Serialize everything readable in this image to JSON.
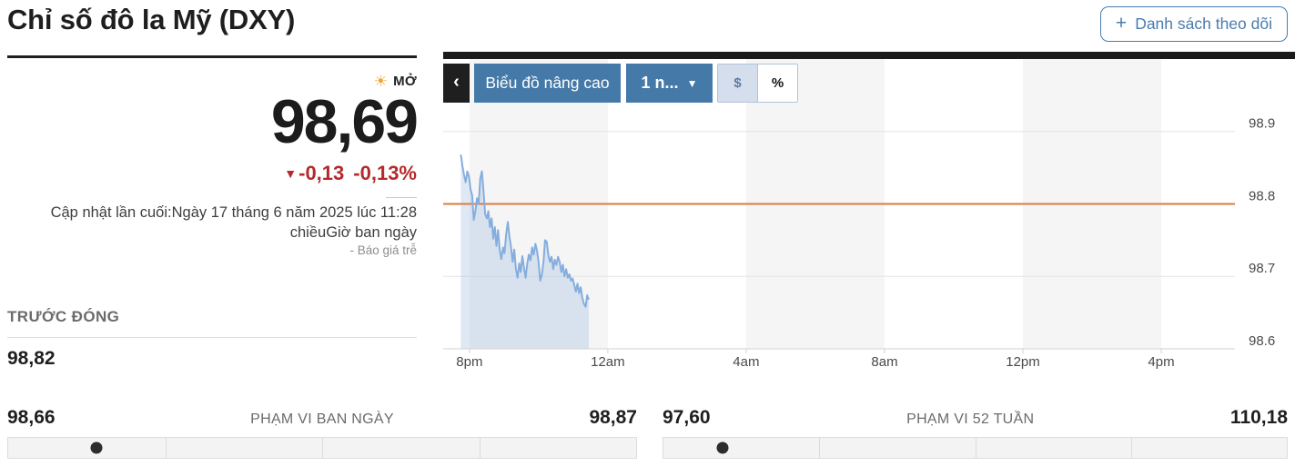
{
  "header": {
    "title": "Chỉ số đô la Mỹ (DXY)",
    "watchlist_plus": "+",
    "watchlist_label": "Danh sách theo dõi"
  },
  "quote": {
    "status_label": "MỞ",
    "sun_icon": "☀",
    "price": "98,69",
    "down_arrow": "▼",
    "change": "-0,13",
    "change_pct": "-0,13%",
    "updated_line1": "Cập nhật lần cuối:Ngày 17 tháng 6 năm 2025 lúc 11:28",
    "updated_line2": "chiềuGiờ ban ngày",
    "late_note": "-  Báo giá trễ"
  },
  "prev_close": {
    "label": "TRƯỚC ĐÓNG",
    "value": "98,82"
  },
  "ranges": {
    "day": {
      "low": "98,66",
      "label": "PHẠM VI BAN NGÀY",
      "high": "98,87",
      "position_pct": 14
    },
    "week52": {
      "low": "97,60",
      "label": "PHẠM VI 52 TUẦN",
      "high": "110,18",
      "position_pct": 9.5
    }
  },
  "chart": {
    "buttons": {
      "back": "‹",
      "advanced_label": "Biểu đồ nâng cao",
      "interval_label": "1 n...",
      "caret": "▼",
      "dollar": "$",
      "percent": "%"
    }
  },
  "colors": {
    "line_blue": "#85aedd",
    "fill_blue": "rgba(148,181,222,0.30)",
    "ref_orange": "#d97b3f",
    "band_gray": "#f5f5f6",
    "grid_gray": "#e4e4e4",
    "axis_gray": "#d2d2d2",
    "tick_text": "#4a4a4a",
    "down_red": "#b5292c",
    "accent_blue": "#4479a8"
  },
  "chart_data": {
    "type": "area",
    "title": "DXY intraday price",
    "ylim": [
      98.6,
      99.0
    ],
    "y_ticks": [
      98.9,
      98.8,
      98.7,
      98.6
    ],
    "ref_line_value": 98.8,
    "xlim_hours": [
      -0.76,
      22.13
    ],
    "x_tick_hours": [
      0,
      4,
      8,
      12,
      16,
      20
    ],
    "x_tick_labels": [
      "8pm",
      "12am",
      "4am",
      "8am",
      "12pm",
      "4pm"
    ],
    "shaded_bands_hours": [
      [
        0,
        4
      ],
      [
        8,
        12
      ],
      [
        16,
        20
      ]
    ],
    "grid": true,
    "legend": false,
    "series": [
      {
        "name": "DXY",
        "t_start": -0.25,
        "t_end": 3.45,
        "values": [
          98.868,
          98.852,
          98.84,
          98.83,
          98.845,
          98.838,
          98.82,
          98.812,
          98.778,
          98.79,
          98.808,
          98.8,
          98.835,
          98.845,
          98.818,
          98.786,
          98.78,
          98.79,
          98.768,
          98.78,
          98.752,
          98.768,
          98.742,
          98.764,
          98.736,
          98.724,
          98.74,
          98.732,
          98.758,
          98.775,
          98.755,
          98.74,
          98.72,
          98.737,
          98.71,
          98.698,
          98.718,
          98.706,
          98.728,
          98.712,
          98.698,
          98.718,
          98.73,
          98.722,
          98.74,
          98.73,
          98.745,
          98.736,
          98.72,
          98.694,
          98.702,
          98.72,
          98.75,
          98.748,
          98.73,
          98.72,
          98.727,
          98.71,
          98.723,
          98.716,
          98.727,
          98.72,
          98.706,
          98.716,
          98.7,
          98.71,
          98.698,
          98.703,
          98.694,
          98.697,
          98.688,
          98.679,
          98.69,
          98.677,
          98.685,
          98.67,
          98.662,
          98.658,
          98.674,
          98.668
        ]
      }
    ]
  }
}
